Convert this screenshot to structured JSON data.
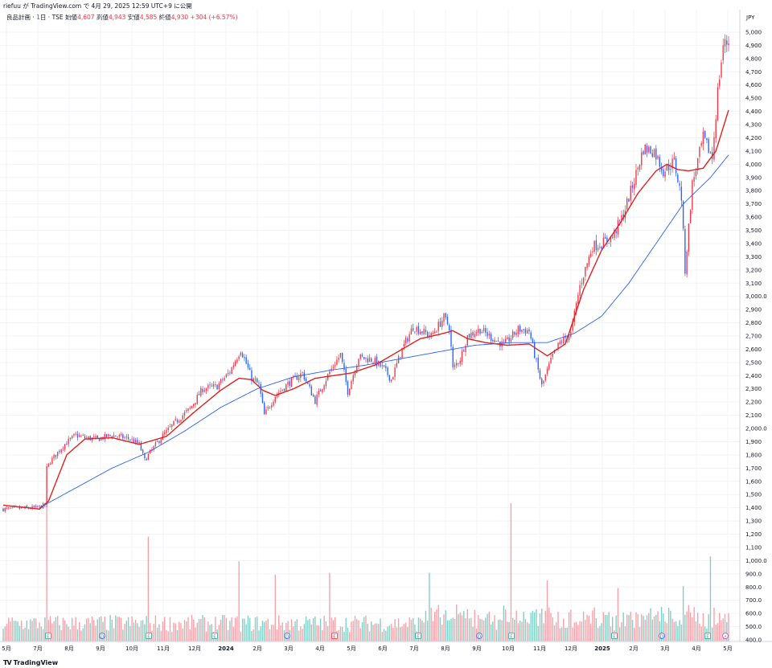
{
  "header": {
    "published_line": "riefuu が TradingView.com で 4月 29, 2025 12:59 UTC+9 に公開"
  },
  "legend": {
    "title": "良品計画 · 1日 · TSE",
    "open_label": "始値",
    "open": "4,607",
    "high_label": "高値",
    "high": "4,943",
    "low_label": "安値",
    "low": "4,585",
    "close_label": "終値",
    "close": "4,930",
    "change": "+304 (+6.57%)"
  },
  "footer": {
    "brand": "TradingView",
    "logo": "TV"
  },
  "colors": {
    "up": "#f23645",
    "down": "#2962ff",
    "ma_short": "#e0211f",
    "ma_long": "#2962ff",
    "vol_up": "#f7a0a8",
    "vol_down": "#7fcfc4",
    "grid": "#f0f3fa"
  },
  "chart_data": {
    "type": "candlestick",
    "currency": "JPY",
    "y_ticks": [
      "5,000",
      "4,900",
      "4,800",
      "4,700",
      "4,600",
      "4,500",
      "4,400",
      "4,300",
      "4,200",
      "4,100",
      "4,000",
      "3,900",
      "3,800",
      "3,700",
      "3,600",
      "3,500",
      "3,400",
      "3,300",
      "3,200",
      "3,100",
      "3,000.0",
      "2,900",
      "2,800",
      "2,700",
      "2,600",
      "2,500",
      "2,400",
      "2,300",
      "2,200",
      "2,100",
      "2,000.0",
      "1,900",
      "1,800",
      "1,700",
      "1,600",
      "1,500",
      "1,400",
      "1,300",
      "1,200",
      "1,100",
      "1,000.0",
      "900.0",
      "800.0",
      "700.0",
      "600.0",
      "500.0",
      "400.0"
    ],
    "x_ticks": [
      "5月",
      "7月",
      "8月",
      "9月",
      "10月",
      "11月",
      "12月",
      "2024",
      "2月",
      "3月",
      "4月",
      "5月",
      "6月",
      "7月",
      "8月",
      "9月",
      "10月",
      "11月",
      "12月",
      "2025",
      "2月",
      "3月",
      "4月",
      "5月"
    ],
    "price_path": [
      [
        0,
        1390
      ],
      [
        8,
        1395
      ],
      [
        18,
        1400
      ],
      [
        23,
        1420
      ],
      [
        24,
        1700
      ],
      [
        26,
        1750
      ],
      [
        33,
        1870
      ],
      [
        40,
        1950
      ],
      [
        45,
        1930
      ],
      [
        52,
        1920
      ],
      [
        60,
        1950
      ],
      [
        70,
        1920
      ],
      [
        75,
        1880
      ],
      [
        78,
        1760
      ],
      [
        80,
        1800
      ],
      [
        87,
        1930
      ],
      [
        95,
        2050
      ],
      [
        103,
        2150
      ],
      [
        110,
        2300
      ],
      [
        118,
        2320
      ],
      [
        125,
        2430
      ],
      [
        131,
        2600
      ],
      [
        137,
        2380
      ],
      [
        141,
        2330
      ],
      [
        144,
        2100
      ],
      [
        150,
        2250
      ],
      [
        158,
        2350
      ],
      [
        165,
        2420
      ],
      [
        172,
        2210
      ],
      [
        180,
        2430
      ],
      [
        186,
        2560
      ],
      [
        190,
        2280
      ],
      [
        196,
        2540
      ],
      [
        204,
        2520
      ],
      [
        210,
        2450
      ],
      [
        214,
        2370
      ],
      [
        220,
        2600
      ],
      [
        226,
        2770
      ],
      [
        236,
        2700
      ],
      [
        243,
        2840
      ],
      [
        246,
        2770
      ],
      [
        248,
        2450
      ],
      [
        252,
        2530
      ],
      [
        256,
        2700
      ],
      [
        263,
        2750
      ],
      [
        268,
        2700
      ],
      [
        276,
        2630
      ],
      [
        284,
        2750
      ],
      [
        290,
        2740
      ],
      [
        297,
        2320
      ],
      [
        303,
        2550
      ],
      [
        307,
        2650
      ],
      [
        313,
        2720
      ],
      [
        318,
        3080
      ],
      [
        325,
        3380
      ],
      [
        330,
        3400
      ],
      [
        336,
        3450
      ],
      [
        342,
        3620
      ],
      [
        348,
        3880
      ],
      [
        353,
        4120
      ],
      [
        359,
        4100
      ],
      [
        364,
        3950
      ],
      [
        370,
        4020
      ],
      [
        374,
        3750
      ],
      [
        376,
        3200
      ],
      [
        380,
        3850
      ],
      [
        386,
        4200
      ],
      [
        391,
        4050
      ],
      [
        394,
        4550
      ],
      [
        397,
        4900
      ],
      [
        400,
        4930
      ]
    ],
    "ma_short_path": [
      [
        0,
        1420
      ],
      [
        20,
        1390
      ],
      [
        25,
        1450
      ],
      [
        35,
        1800
      ],
      [
        45,
        1920
      ],
      [
        60,
        1930
      ],
      [
        75,
        1880
      ],
      [
        90,
        1940
      ],
      [
        105,
        2120
      ],
      [
        120,
        2290
      ],
      [
        130,
        2380
      ],
      [
        137,
        2370
      ],
      [
        143,
        2290
      ],
      [
        150,
        2250
      ],
      [
        160,
        2300
      ],
      [
        172,
        2380
      ],
      [
        182,
        2400
      ],
      [
        192,
        2420
      ],
      [
        205,
        2480
      ],
      [
        215,
        2560
      ],
      [
        230,
        2680
      ],
      [
        240,
        2710
      ],
      [
        248,
        2740
      ],
      [
        256,
        2680
      ],
      [
        266,
        2650
      ],
      [
        278,
        2630
      ],
      [
        290,
        2640
      ],
      [
        300,
        2550
      ],
      [
        310,
        2640
      ],
      [
        320,
        3050
      ],
      [
        330,
        3350
      ],
      [
        340,
        3550
      ],
      [
        350,
        3780
      ],
      [
        360,
        3950
      ],
      [
        366,
        4000
      ],
      [
        372,
        3960
      ],
      [
        378,
        3950
      ],
      [
        386,
        3970
      ],
      [
        393,
        4100
      ],
      [
        400,
        4410
      ]
    ],
    "ma_long_path": [
      [
        20,
        1400
      ],
      [
        40,
        1550
      ],
      [
        60,
        1700
      ],
      [
        80,
        1820
      ],
      [
        100,
        1980
      ],
      [
        120,
        2160
      ],
      [
        140,
        2300
      ],
      [
        160,
        2390
      ],
      [
        180,
        2440
      ],
      [
        200,
        2480
      ],
      [
        220,
        2530
      ],
      [
        240,
        2580
      ],
      [
        260,
        2630
      ],
      [
        280,
        2650
      ],
      [
        300,
        2650
      ],
      [
        315,
        2720
      ],
      [
        330,
        2850
      ],
      [
        345,
        3100
      ],
      [
        360,
        3400
      ],
      [
        375,
        3700
      ],
      [
        390,
        3900
      ],
      [
        400,
        4070
      ]
    ],
    "volume_spikes": [
      [
        24,
        1500
      ],
      [
        80,
        1100
      ],
      [
        130,
        840
      ],
      [
        150,
        700
      ],
      [
        180,
        720
      ],
      [
        235,
        720
      ],
      [
        280,
        1450
      ],
      [
        300,
        640
      ],
      [
        339,
        560
      ],
      [
        375,
        580
      ],
      [
        390,
        890
      ]
    ],
    "volume_axis_max": 1500
  }
}
